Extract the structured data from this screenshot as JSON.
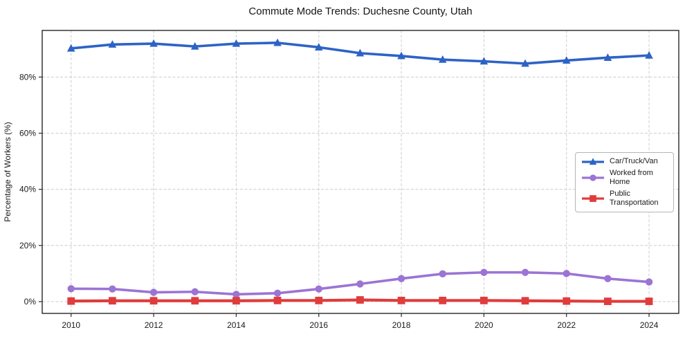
{
  "chart_data": {
    "type": "line",
    "title": "Commute Mode Trends: Duchesne County, Utah",
    "xlabel": "",
    "ylabel": "Percentage of Workers (%)",
    "x": [
      2010,
      2011,
      2012,
      2013,
      2014,
      2015,
      2016,
      2017,
      2018,
      2019,
      2020,
      2021,
      2022,
      2023,
      2024
    ],
    "series": [
      {
        "name": "Car/Truck/Van",
        "color": "#2d63c6",
        "marker": "triangle",
        "line_width": 3.6,
        "values": [
          90.2,
          91.6,
          91.9,
          90.9,
          91.9,
          92.2,
          90.6,
          88.5,
          87.5,
          86.2,
          85.6,
          84.8,
          85.9,
          86.9,
          87.7
        ]
      },
      {
        "name": "Worked from Home",
        "color": "#9b74d4",
        "marker": "circle",
        "line_width": 3.6,
        "values": [
          4.6,
          4.5,
          3.3,
          3.5,
          2.6,
          3.0,
          4.5,
          6.3,
          8.2,
          9.9,
          10.4,
          10.4,
          10.0,
          8.2,
          7.0
        ]
      },
      {
        "name": "Public Transportation",
        "color": "#e03c3c",
        "marker": "square",
        "line_width": 4.2,
        "values": [
          0.2,
          0.3,
          0.3,
          0.3,
          0.3,
          0.4,
          0.4,
          0.6,
          0.4,
          0.4,
          0.4,
          0.3,
          0.2,
          0.1,
          0.1
        ]
      }
    ],
    "xlim": [
      2009.3,
      2024.72
    ],
    "ylim": [
      -4.2,
      96.6
    ],
    "x_ticks": [
      2010,
      2012,
      2014,
      2016,
      2018,
      2020,
      2022,
      2024
    ],
    "y_ticks": [
      0,
      20,
      40,
      60,
      80
    ],
    "y_tick_suffix": "%",
    "grid": true,
    "legend_position": "right-middle"
  }
}
